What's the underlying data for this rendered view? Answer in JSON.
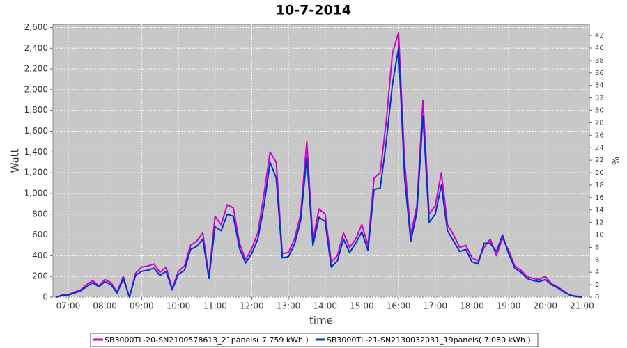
{
  "chart_data": {
    "type": "line",
    "title": "10-7-2014",
    "xlabel": "time",
    "ylabel": "Watt",
    "y2label": "%",
    "x": [
      "06:40",
      "06:50",
      "07:00",
      "07:10",
      "07:20",
      "07:30",
      "07:40",
      "07:50",
      "08:00",
      "08:10",
      "08:20",
      "08:30",
      "08:40",
      "08:50",
      "09:00",
      "09:10",
      "09:20",
      "09:30",
      "09:40",
      "09:50",
      "10:00",
      "10:10",
      "10:20",
      "10:30",
      "10:40",
      "10:50",
      "11:00",
      "11:10",
      "11:20",
      "11:30",
      "11:40",
      "11:50",
      "12:00",
      "12:10",
      "12:20",
      "12:30",
      "12:40",
      "12:50",
      "13:00",
      "13:10",
      "13:20",
      "13:30",
      "13:40",
      "13:50",
      "14:00",
      "14:10",
      "14:20",
      "14:30",
      "14:40",
      "14:50",
      "15:00",
      "15:10",
      "15:20",
      "15:30",
      "15:40",
      "15:50",
      "16:00",
      "16:10",
      "16:20",
      "16:30",
      "16:40",
      "16:50",
      "17:00",
      "17:10",
      "17:20",
      "17:30",
      "17:40",
      "17:50",
      "18:00",
      "18:10",
      "18:20",
      "18:30",
      "18:40",
      "18:50",
      "19:00",
      "19:10",
      "19:20",
      "19:30",
      "19:40",
      "19:50",
      "20:00",
      "20:10",
      "20:20",
      "20:30",
      "20:40",
      "20:50",
      "21:00"
    ],
    "series": [
      {
        "name": "SB3000TL-20-SN2100578613_21panels( 7.759 kWh )",
        "color": "#cc00cc",
        "values": [
          0,
          20,
          25,
          50,
          70,
          120,
          160,
          110,
          170,
          140,
          50,
          200,
          0,
          230,
          290,
          300,
          320,
          240,
          290,
          80,
          250,
          300,
          500,
          540,
          620,
          200,
          780,
          700,
          890,
          860,
          520,
          360,
          470,
          620,
          990,
          1400,
          1300,
          420,
          430,
          560,
          800,
          1500,
          550,
          850,
          800,
          340,
          400,
          620,
          480,
          560,
          700,
          500,
          1150,
          1200,
          1700,
          2350,
          2550,
          1300,
          600,
          880,
          1900,
          800,
          880,
          1200,
          700,
          600,
          480,
          500,
          380,
          350,
          480,
          560,
          400,
          570,
          450,
          300,
          260,
          200,
          180,
          170,
          200,
          130,
          100,
          60,
          20,
          10,
          0
        ]
      },
      {
        "name": "SB3000TL-21-SN2130032031_19panels( 7.080 kWh )",
        "color": "#0033cc",
        "values": [
          0,
          15,
          20,
          40,
          60,
          100,
          140,
          100,
          150,
          120,
          40,
          180,
          0,
          210,
          250,
          260,
          280,
          210,
          250,
          70,
          220,
          260,
          460,
          490,
          560,
          180,
          680,
          640,
          800,
          780,
          470,
          330,
          420,
          560,
          880,
          1300,
          1150,
          380,
          390,
          510,
          740,
          1350,
          500,
          770,
          730,
          290,
          350,
          560,
          430,
          520,
          630,
          450,
          1040,
          1050,
          1500,
          2050,
          2400,
          1150,
          540,
          820,
          1750,
          720,
          800,
          1080,
          640,
          540,
          440,
          460,
          340,
          320,
          520,
          520,
          440,
          600,
          420,
          280,
          240,
          180,
          160,
          150,
          170,
          120,
          90,
          50,
          20,
          5,
          0
        ]
      }
    ],
    "xlim": [
      "06:35",
      "21:12"
    ],
    "xticks": [
      "07:00",
      "08:00",
      "09:00",
      "10:00",
      "11:00",
      "12:00",
      "13:00",
      "14:00",
      "15:00",
      "16:00",
      "17:00",
      "18:00",
      "19:00",
      "20:00",
      "21:00"
    ],
    "ylim": [
      0,
      2630
    ],
    "yticks": [
      0,
      200,
      400,
      600,
      800,
      {
        "value": 1000,
        "label": "1,000"
      },
      {
        "value": 1200,
        "label": "1,200"
      },
      {
        "value": 1400,
        "label": "1,400"
      },
      {
        "value": 1600,
        "label": "1,600"
      },
      {
        "value": 1800,
        "label": "1,800"
      },
      {
        "value": 2000,
        "label": "2,000"
      },
      {
        "value": 2200,
        "label": "2,200"
      },
      {
        "value": 2400,
        "label": "2,400"
      },
      {
        "value": 2600,
        "label": "2,600"
      }
    ],
    "y2lim": [
      0,
      43.8
    ],
    "y2ticks": [
      0,
      2,
      4,
      6,
      8,
      10,
      12,
      14,
      16,
      18,
      20,
      22,
      24,
      26,
      28,
      30,
      32,
      34,
      36,
      38,
      40,
      42
    ],
    "grid": true
  }
}
